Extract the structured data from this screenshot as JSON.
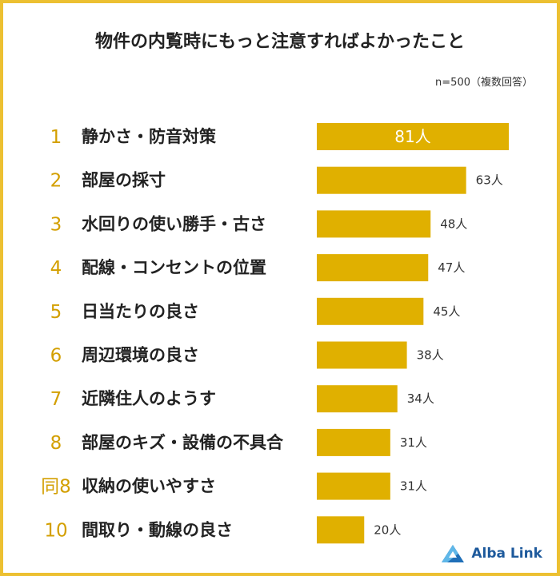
{
  "title": "物件の内覧時にもっと注意すればよかったこと",
  "note": "n=500（複数回答）",
  "brand": "Alba Link",
  "colors": {
    "bar": "#e0b000",
    "rank": "#d39f00",
    "border": "#ecc031"
  },
  "chart_data": {
    "type": "bar",
    "orientation": "horizontal",
    "unit": "人",
    "ranks": [
      "1",
      "2",
      "3",
      "4",
      "5",
      "6",
      "7",
      "8",
      "同8",
      "10"
    ],
    "categories": [
      "静かさ・防音対策",
      "部屋の採寸",
      "水回りの使い勝手・古さ",
      "配線・コンセントの位置",
      "日当たりの良さ",
      "周辺環境の良さ",
      "近隣住人のようす",
      "部屋のキズ・設備の不具合",
      "収納の使いやすさ",
      "間取り・動線の良さ"
    ],
    "values": [
      81,
      63,
      48,
      47,
      45,
      38,
      34,
      31,
      31,
      20
    ],
    "value_labels": [
      "81人",
      "63人",
      "48人",
      "47人",
      "45人",
      "38人",
      "34人",
      "31人",
      "31人",
      "20人"
    ]
  }
}
